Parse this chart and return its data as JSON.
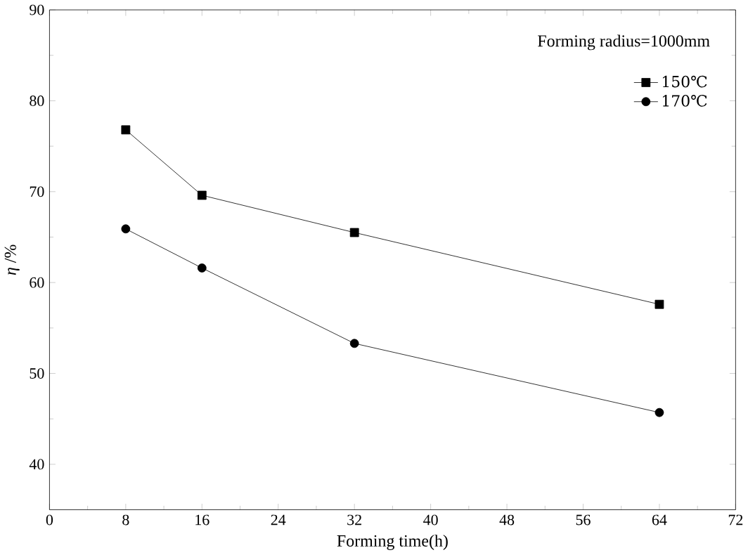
{
  "chart_data": {
    "type": "line",
    "xlabel": "Forming time(h)",
    "ylabel": "*η* /%",
    "legend_title": "Forming radius=1000mm",
    "x": [
      8,
      16,
      32,
      64
    ],
    "series": [
      {
        "name": "150℃",
        "color": "#000000",
        "marker": "square",
        "values": [
          76.8,
          69.6,
          65.5,
          57.6
        ]
      },
      {
        "name": "170℃",
        "color": "#000000",
        "marker": "circle",
        "values": [
          65.9,
          61.6,
          53.3,
          45.7
        ]
      }
    ],
    "xlim": [
      0,
      72
    ],
    "ylim": [
      35,
      90
    ],
    "xticks": [
      0,
      8,
      16,
      24,
      32,
      40,
      48,
      56,
      64,
      72
    ],
    "yticks": [
      40,
      50,
      60,
      70,
      80,
      90
    ],
    "legend": "top right",
    "grid": false,
    "line_style": "solid"
  }
}
